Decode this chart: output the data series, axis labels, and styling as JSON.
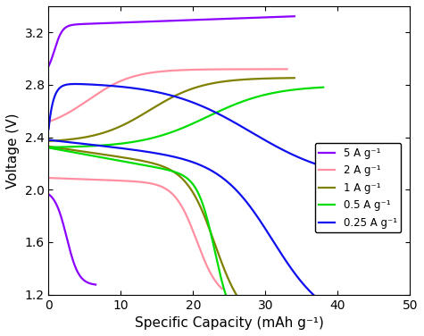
{
  "xlabel": "Specific Capacity (mAh g⁻¹)",
  "ylabel": "Voltage (V)",
  "xlim": [
    0,
    50
  ],
  "ylim": [
    1.2,
    3.4
  ],
  "xticks": [
    0,
    10,
    20,
    30,
    40,
    50
  ],
  "yticks": [
    1.2,
    1.6,
    2.0,
    2.4,
    2.8,
    3.2
  ],
  "legend_labels": [
    "5 A g⁻¹",
    "2 A g⁻¹",
    "1 A g⁻¹",
    "0.5 A g⁻¹",
    "0.25 A g⁻¹"
  ],
  "colors": [
    "#8B00FF",
    "#FF8FA0",
    "#808000",
    "#00DD00",
    "#1010EE"
  ],
  "linewidth": 1.6,
  "figsize": [
    4.75,
    3.76
  ],
  "dpi": 100
}
